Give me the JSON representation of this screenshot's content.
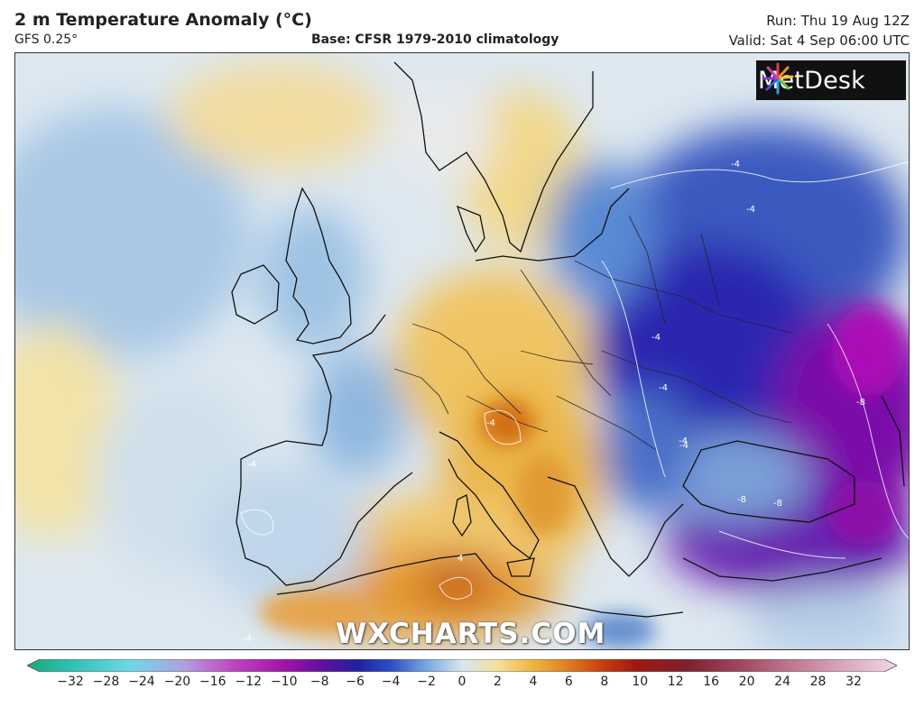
{
  "header": {
    "title": "2 m Temperature Anomaly (°C)",
    "model": "GFS 0.25°",
    "base": "Base: CFSR 1979-2010 climatology",
    "run": "Run: Thu 19 Aug 12Z",
    "valid": "Valid: Sat 4 Sep 06:00 UTC"
  },
  "logo": {
    "text": "MetDesk"
  },
  "watermark": "WXCHARTS.COM",
  "colorbar": {
    "ticks": [
      "−32",
      "−28",
      "−24",
      "−20",
      "−16",
      "−12",
      "−10",
      "−8",
      "−6",
      "−4",
      "−2",
      "0",
      "2",
      "4",
      "6",
      "8",
      "10",
      "12",
      "16",
      "20",
      "24",
      "28",
      "32"
    ]
  },
  "contour_labels": [
    "-4",
    "-4",
    "-4",
    "-4",
    "-4",
    "-8",
    "-8",
    "-8",
    "4",
    "-4",
    "-4",
    "-4",
    "-4"
  ],
  "colors": {
    "cold_deep": "#7a0ea0",
    "cold_strong": "#2620a8",
    "cold": "#3f6fc8",
    "cool": "#a9c8e6",
    "neutral": "#e8eef2",
    "warm": "#f2d180",
    "hot": "#e8a030",
    "hotter": "#d06010",
    "extreme": "#a02010"
  }
}
